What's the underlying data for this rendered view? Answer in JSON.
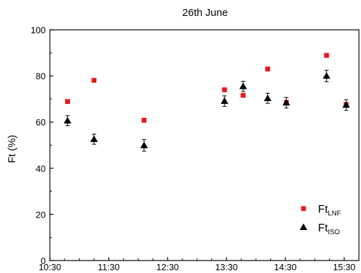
{
  "chart_data": {
    "type": "scatter",
    "title": "26th June",
    "xlabel": "",
    "ylabel": "Ft (%)",
    "xlim": [
      "10:30",
      "15:45"
    ],
    "ylim": [
      0,
      100
    ],
    "xticks": [
      "10:30",
      "11:30",
      "12:30",
      "13:30",
      "14:30",
      "15:30"
    ],
    "yticks": [
      0,
      20,
      40,
      60,
      80,
      100
    ],
    "grid": false,
    "legend_position": "bottom-right",
    "series": [
      {
        "name_main": "Ft",
        "name_sub": "LNF",
        "marker": "square",
        "color": "#e8191c",
        "points": [
          {
            "x": "10:48",
            "y": 68.9
          },
          {
            "x": "11:15",
            "y": 78.1
          },
          {
            "x": "12:06",
            "y": 60.8
          },
          {
            "x": "13:28",
            "y": 74.0
          },
          {
            "x": "13:47",
            "y": 71.6
          },
          {
            "x": "14:12",
            "y": 83.0
          },
          {
            "x": "14:31",
            "y": 68.5
          },
          {
            "x": "15:12",
            "y": 88.9
          },
          {
            "x": "15:32",
            "y": 67.6
          }
        ]
      },
      {
        "name_main": "Ft",
        "name_sub": "ISO",
        "marker": "triangle",
        "color": "#000000",
        "points": [
          {
            "x": "10:48",
            "y": 60.6,
            "err": 2.2
          },
          {
            "x": "11:15",
            "y": 52.6,
            "err": 2.2
          },
          {
            "x": "12:06",
            "y": 49.9,
            "err": 2.5
          },
          {
            "x": "13:28",
            "y": 69.1,
            "err": 2.3
          },
          {
            "x": "13:47",
            "y": 75.5,
            "err": 2.2
          },
          {
            "x": "14:12",
            "y": 70.3,
            "err": 2.2
          },
          {
            "x": "14:31",
            "y": 68.4,
            "err": 2.3
          },
          {
            "x": "15:12",
            "y": 80.0,
            "err": 2.5
          },
          {
            "x": "15:32",
            "y": 67.4,
            "err": 2.3
          }
        ]
      }
    ]
  }
}
